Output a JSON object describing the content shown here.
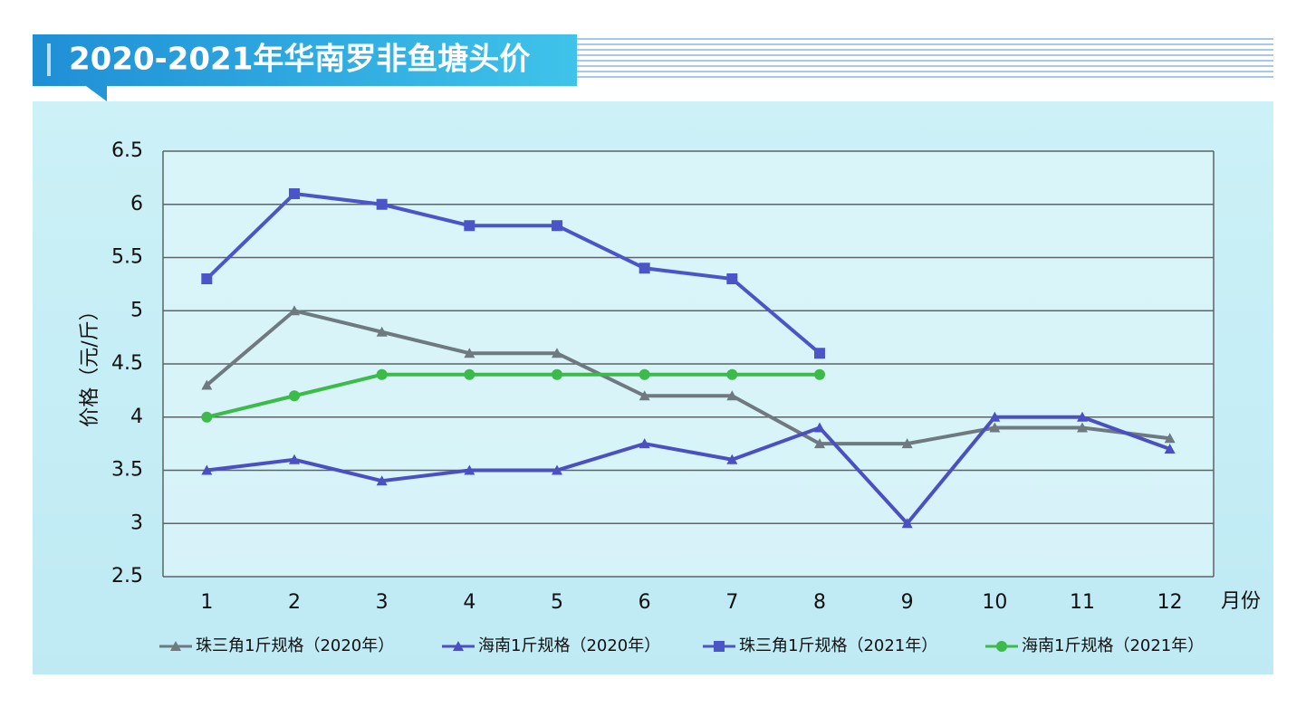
{
  "chart_data": {
    "type": "line",
    "title": "2020-2021年华南罗非鱼塘头价",
    "y_label": "价格（元/斤）",
    "x_label": "月份",
    "categories": [
      "1",
      "2",
      "3",
      "4",
      "5",
      "6",
      "7",
      "8",
      "9",
      "10",
      "11",
      "12"
    ],
    "series": [
      {
        "name": "珠三角1斤规格（2020年）",
        "color": "#6e7a80",
        "marker": "triangle",
        "values": [
          4.3,
          5.0,
          4.8,
          4.6,
          4.6,
          4.2,
          4.2,
          3.75,
          3.75,
          3.9,
          3.9,
          3.8
        ]
      },
      {
        "name": "海南1斤规格（2020年）",
        "color": "#4a50c2",
        "marker": "triangle",
        "values": [
          3.5,
          3.6,
          3.4,
          3.5,
          3.5,
          3.75,
          3.6,
          3.9,
          3.0,
          4.0,
          4.0,
          3.7
        ]
      },
      {
        "name": "珠三角1斤规格（2021年）",
        "color": "#4b55c8",
        "marker": "square",
        "values": [
          5.3,
          6.1,
          6.0,
          5.8,
          5.8,
          5.4,
          5.3,
          4.6,
          null,
          null,
          null,
          null
        ]
      },
      {
        "name": "海南1斤规格（2021年）",
        "color": "#3cba4a",
        "marker": "circle",
        "values": [
          4.0,
          4.2,
          4.4,
          4.4,
          4.4,
          4.4,
          4.4,
          4.4,
          null,
          null,
          null,
          null
        ]
      }
    ],
    "ylim": [
      2.5,
      6.5
    ],
    "yticks": [
      2.5,
      3,
      3.5,
      4,
      4.5,
      5,
      5.5,
      6,
      6.5
    ],
    "grid": true
  }
}
